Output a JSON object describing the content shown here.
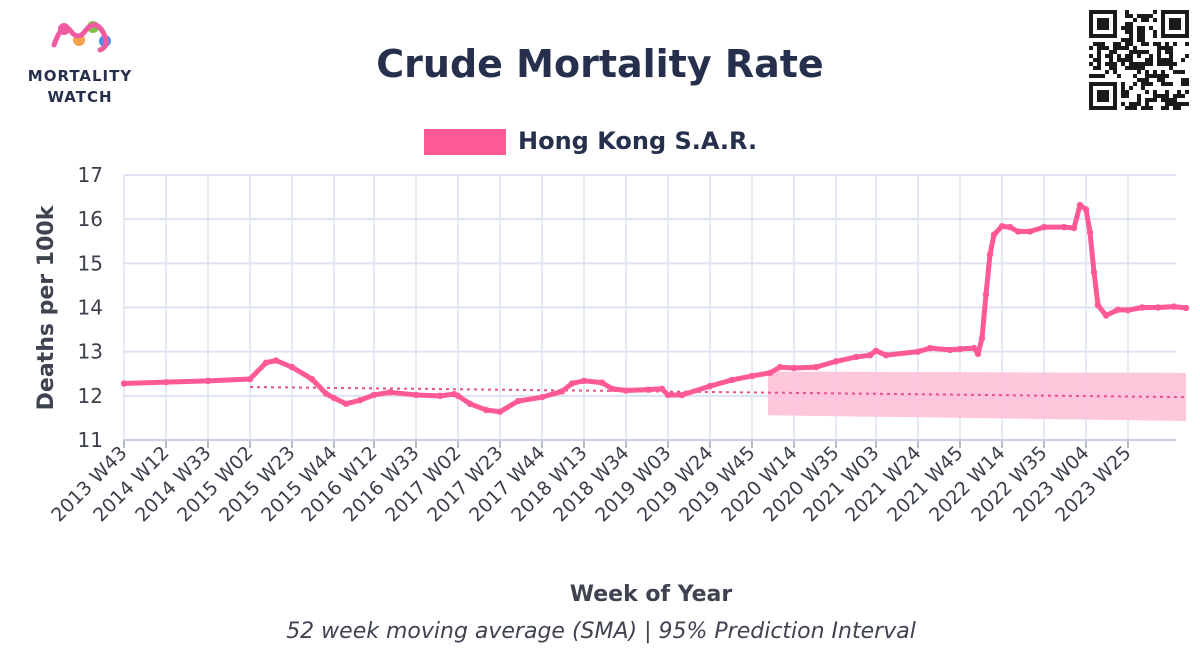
{
  "brand": {
    "line1": "MORTALITY",
    "line2": "WATCH",
    "dot_colors": [
      "#f05aa0",
      "#f5a04a",
      "#7fc243",
      "#4a8fe8"
    ]
  },
  "colors": {
    "series": "#ff5a96",
    "band": "#ffc1d8",
    "trend": "#e8528c",
    "grid": "#dde3f0",
    "title": "#26304d"
  },
  "chart_data": {
    "type": "line",
    "title": "Crude Mortality Rate",
    "subtitle": "52 week moving average (SMA) | 95% Prediction Interval",
    "xlabel": "Week of Year",
    "ylabel": "Deaths per 100k",
    "ylim": [
      11,
      17
    ],
    "yticks": [
      11,
      12,
      13,
      14,
      15,
      16,
      17
    ],
    "grid": true,
    "legend_position": "top-center",
    "x_tick_labels": [
      "2013 W43",
      "2014 W12",
      "2014 W33",
      "2015 W02",
      "2015 W23",
      "2015 W44",
      "2016 W12",
      "2016 W33",
      "2017 W02",
      "2017 W23",
      "2017 W44",
      "2018 W13",
      "2018 W34",
      "2019 W03",
      "2019 W24",
      "2019 W45",
      "2020 W14",
      "2020 W35",
      "2021 W03",
      "2021 W24",
      "2021 W45",
      "2022 W14",
      "2022 W35",
      "2023 W04",
      "2023 W25"
    ],
    "series": [
      {
        "name": "Hong Kong S.A.R.",
        "points": [
          [
            "2013 W43",
            12.28
          ],
          [
            "2014 W12",
            12.31
          ],
          [
            "2014 W33",
            12.34
          ],
          [
            "2015 W02",
            12.38
          ],
          [
            "2015 W10",
            12.75
          ],
          [
            "2015 W15",
            12.8
          ],
          [
            "2015 W23",
            12.65
          ],
          [
            "2015 W33",
            12.38
          ],
          [
            "2015 W40",
            12.05
          ],
          [
            "2015 W44",
            11.95
          ],
          [
            "2015 W50",
            11.82
          ],
          [
            "2016 W05",
            11.9
          ],
          [
            "2016 W12",
            12.02
          ],
          [
            "2016 W20",
            12.08
          ],
          [
            "2016 W33",
            12.02
          ],
          [
            "2016 W45",
            12.0
          ],
          [
            "2016 W52",
            12.04
          ],
          [
            "2017 W02",
            12.0
          ],
          [
            "2017 W08",
            11.82
          ],
          [
            "2017 W16",
            11.68
          ],
          [
            "2017 W23",
            11.64
          ],
          [
            "2017 W32",
            11.88
          ],
          [
            "2017 W44",
            11.97
          ],
          [
            "2018 W02",
            12.1
          ],
          [
            "2018 W07",
            12.28
          ],
          [
            "2018 W13",
            12.34
          ],
          [
            "2018 W22",
            12.3
          ],
          [
            "2018 W27",
            12.16
          ],
          [
            "2018 W34",
            12.12
          ],
          [
            "2018 W45",
            12.14
          ],
          [
            "2018 W52",
            12.16
          ],
          [
            "2019 W03",
            12.02
          ],
          [
            "2019 W10",
            12.02
          ],
          [
            "2019 W24",
            12.22
          ],
          [
            "2019 W35",
            12.36
          ],
          [
            "2019 W45",
            12.45
          ],
          [
            "2020 W02",
            12.52
          ],
          [
            "2020 W07",
            12.65
          ],
          [
            "2020 W14",
            12.63
          ],
          [
            "2020 W25",
            12.65
          ],
          [
            "2020 W35",
            12.78
          ],
          [
            "2020 W45",
            12.88
          ],
          [
            "2020 W52",
            12.92
          ],
          [
            "2021 W03",
            13.02
          ],
          [
            "2021 W08",
            12.92
          ],
          [
            "2021 W24",
            13.0
          ],
          [
            "2021 W30",
            13.08
          ],
          [
            "2021 W40",
            13.04
          ],
          [
            "2021 W45",
            13.06
          ],
          [
            "2021 W52",
            13.08
          ],
          [
            "2022 W02",
            12.95
          ],
          [
            "2022 W04",
            13.3
          ],
          [
            "2022 W06",
            14.3
          ],
          [
            "2022 W08",
            15.2
          ],
          [
            "2022 W10",
            15.65
          ],
          [
            "2022 W14",
            15.84
          ],
          [
            "2022 W18",
            15.82
          ],
          [
            "2022 W22",
            15.72
          ],
          [
            "2022 W28",
            15.72
          ],
          [
            "2022 W35",
            15.82
          ],
          [
            "2022 W45",
            15.82
          ],
          [
            "2022 W50",
            15.8
          ],
          [
            "2023 W01",
            16.32
          ],
          [
            "2023 W04",
            16.22
          ],
          [
            "2023 W06",
            15.7
          ],
          [
            "2023 W08",
            14.8
          ],
          [
            "2023 W10",
            14.05
          ],
          [
            "2023 W14",
            13.82
          ],
          [
            "2023 W20",
            13.95
          ],
          [
            "2023 W25",
            13.94
          ],
          [
            "2023 W32",
            14.0
          ],
          [
            "2023 W40",
            14.0
          ],
          [
            "2023 W48",
            14.02
          ],
          [
            "2024 W02",
            13.99
          ]
        ]
      }
    ],
    "trend": {
      "start": [
        "2015 W02",
        12.2
      ],
      "end": [
        "2024 W02",
        11.97
      ]
    },
    "prediction_interval": {
      "x_start": "2020 W01",
      "x_end": "2024 W02",
      "upper": [
        12.55,
        12.52
      ],
      "lower": [
        11.56,
        11.43
      ]
    }
  }
}
